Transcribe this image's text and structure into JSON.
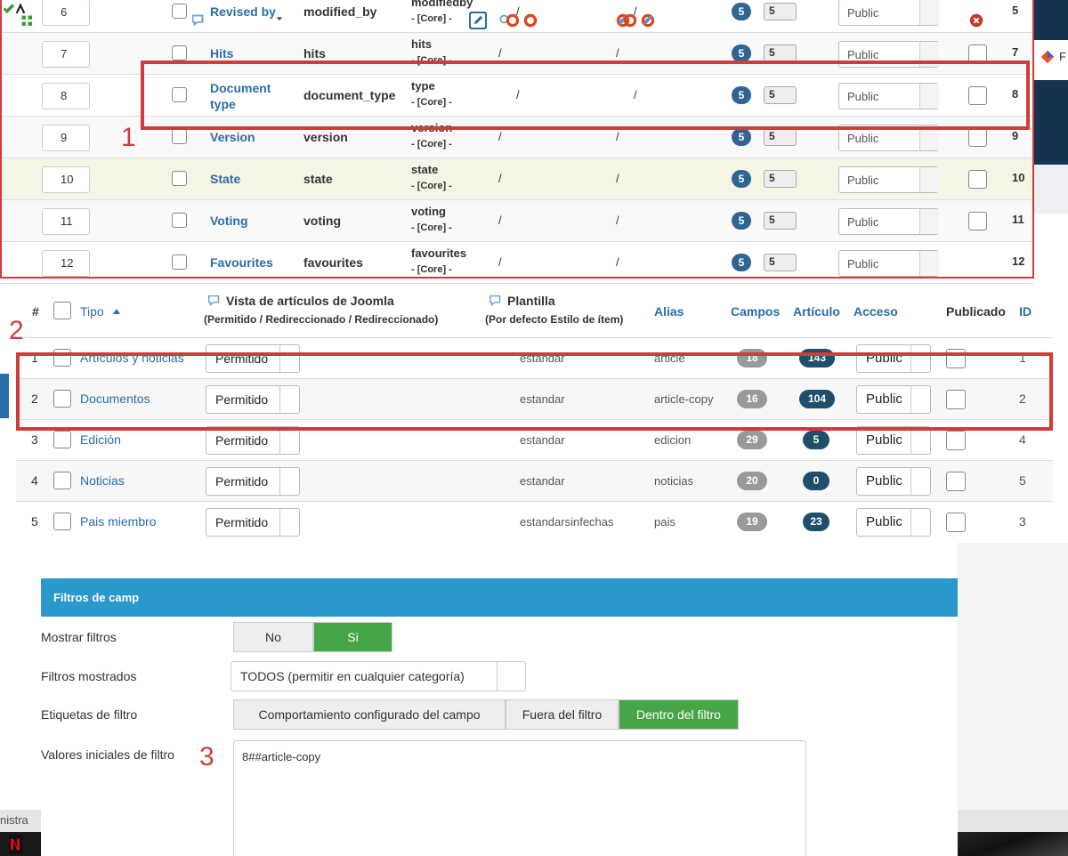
{
  "separator": "/",
  "annotations": [
    "1",
    "2",
    "3"
  ],
  "top_table": {
    "rows": [
      {
        "order": 6,
        "label": "Revised by",
        "name": "modified_by",
        "type": "modifiedby",
        "group": "- [Core] -",
        "badge": 5,
        "level": 5,
        "access": "Public",
        "published": "unset",
        "id": 5
      },
      {
        "order": 7,
        "label": "Hits",
        "name": "hits",
        "type": "hits",
        "group": "- [Core] -",
        "badge": 5,
        "level": 5,
        "access": "Public",
        "published": "yes",
        "id": 7
      },
      {
        "order": 8,
        "label": "Document type",
        "name": "document_type",
        "type": "type",
        "group": "- [Core] -",
        "badge": 5,
        "level": 5,
        "access": "Public",
        "published": "yes",
        "id": 8
      },
      {
        "order": 9,
        "label": "Version",
        "name": "version",
        "type": "version",
        "group": "- [Core] -",
        "badge": 5,
        "level": 5,
        "access": "Public",
        "published": "yes",
        "id": 9
      },
      {
        "order": 10,
        "label": "State",
        "name": "state",
        "type": "state",
        "group": "- [Core] -",
        "badge": 5,
        "level": 5,
        "access": "Public",
        "published": "yes",
        "id": 10
      },
      {
        "order": 11,
        "label": "Voting",
        "name": "voting",
        "type": "voting",
        "group": "- [Core] -",
        "badge": 5,
        "level": 5,
        "access": "Public",
        "published": "yes",
        "id": 11
      },
      {
        "order": 12,
        "label": "Favourites",
        "name": "favourites",
        "type": "favourites",
        "group": "- [Core] -",
        "badge": 5,
        "level": 5,
        "access": "Public",
        "published": "no",
        "id": 12
      }
    ]
  },
  "types_table": {
    "headers": {
      "num": "#",
      "type": "Tipo",
      "view": "Vista de artículos de Joomla",
      "view_sub": "(Permitido / Redireccionado / Redireccionado)",
      "template": "Plantilla",
      "template_sub": "(Por defecto Estilo de ítem)",
      "alias": "Alias",
      "fields": "Campos",
      "articles": "Artículo",
      "access": "Acceso",
      "published": "Publicado",
      "id": "ID"
    },
    "rows": [
      {
        "num": 1,
        "type": "Artículos y noticias",
        "view": "Permitido",
        "template": "estandar",
        "alias": "article",
        "fields": 18,
        "articles": 143,
        "access": "Public",
        "id": 1
      },
      {
        "num": 2,
        "type": "Documentos",
        "view": "Permitido",
        "template": "estandar",
        "alias": "article-copy",
        "fields": 16,
        "articles": 104,
        "access": "Public",
        "id": 2
      },
      {
        "num": 3,
        "type": "Edición",
        "view": "Permitido",
        "template": "estandar",
        "alias": "edicion",
        "fields": 29,
        "articles": 5,
        "access": "Public",
        "id": 4
      },
      {
        "num": 4,
        "type": "Noticias",
        "view": "Permitido",
        "template": "estandar",
        "alias": "noticias",
        "fields": 20,
        "articles": 0,
        "access": "Public",
        "id": 5
      },
      {
        "num": 5,
        "type": "Pais miembro",
        "view": "Permitido",
        "template": "estandarsinfechas",
        "alias": "pais",
        "fields": 19,
        "articles": 23,
        "access": "Public",
        "id": 3
      }
    ]
  },
  "filters_panel": {
    "title": "Filtros de camp",
    "show_label": "Mostrar filtros",
    "show_options": [
      "No",
      "Si"
    ],
    "shown_label": "Filtros mostrados",
    "shown_value": "TODOS (permitir en cualquier categoría)",
    "labels_label": "Etiquetas de filtro",
    "labels_options": [
      "Comportamiento configurado del campo",
      "Fuera del filtro",
      "Dentro del filtro"
    ],
    "initial_label": "Valores iniciales de filtro",
    "initial_value": "8##article-copy"
  },
  "background": {
    "right_tab": "F",
    "status": "nistra"
  }
}
